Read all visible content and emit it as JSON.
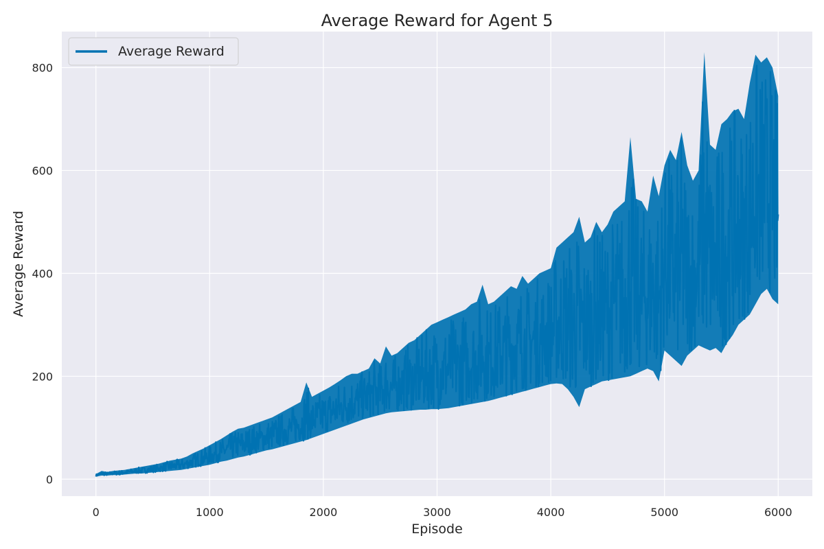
{
  "chart_data": {
    "type": "line",
    "title": "Average Reward for Agent 5",
    "xlabel": "Episode",
    "ylabel": "Average Reward",
    "xlim": [
      -300,
      6300
    ],
    "ylim": [
      -33,
      870
    ],
    "xticks": [
      0,
      1000,
      2000,
      3000,
      4000,
      5000,
      6000
    ],
    "yticks": [
      0,
      200,
      400,
      600,
      800
    ],
    "grid": true,
    "legend_position": "top-left",
    "series": [
      {
        "name": "Average Reward",
        "color": "#0072b2",
        "x": [
          0,
          50,
          100,
          150,
          200,
          250,
          300,
          350,
          400,
          450,
          500,
          550,
          600,
          650,
          700,
          750,
          800,
          850,
          900,
          950,
          1000,
          1050,
          1100,
          1150,
          1200,
          1250,
          1300,
          1350,
          1400,
          1450,
          1500,
          1550,
          1600,
          1650,
          1700,
          1750,
          1800,
          1850,
          1900,
          1950,
          2000,
          2050,
          2100,
          2150,
          2200,
          2250,
          2300,
          2350,
          2400,
          2450,
          2500,
          2550,
          2600,
          2650,
          2700,
          2750,
          2800,
          2850,
          2900,
          2950,
          3000,
          3050,
          3100,
          3150,
          3200,
          3250,
          3300,
          3350,
          3400,
          3450,
          3500,
          3550,
          3600,
          3650,
          3700,
          3750,
          3800,
          3850,
          3900,
          3950,
          4000,
          4050,
          4100,
          4150,
          4200,
          4250,
          4300,
          4350,
          4400,
          4450,
          4500,
          4550,
          4600,
          4650,
          4700,
          4750,
          4800,
          4850,
          4900,
          4950,
          5000,
          5050,
          5100,
          5150,
          5200,
          5250,
          5300,
          5350,
          5400,
          5450,
          5500,
          5550,
          5600,
          5650,
          5700,
          5750,
          5800,
          5850,
          5900,
          5950,
          6000
        ],
        "lower": [
          5,
          7,
          7,
          8,
          8,
          9,
          10,
          11,
          11,
          12,
          13,
          14,
          15,
          16,
          17,
          18,
          20,
          22,
          24,
          26,
          28,
          31,
          34,
          36,
          39,
          42,
          44,
          47,
          50,
          53,
          56,
          58,
          61,
          64,
          67,
          70,
          73,
          76,
          80,
          84,
          88,
          92,
          96,
          100,
          104,
          108,
          112,
          116,
          119,
          122,
          125,
          128,
          130,
          131,
          132,
          133,
          134,
          135,
          135,
          136,
          136,
          137,
          138,
          140,
          142,
          144,
          146,
          148,
          150,
          152,
          155,
          158,
          161,
          164,
          167,
          170,
          173,
          176,
          179,
          182,
          185,
          186,
          185,
          175,
          160,
          140,
          175,
          180,
          185,
          190,
          192,
          194,
          196,
          198,
          200,
          205,
          210,
          215,
          210,
          190,
          250,
          240,
          230,
          220,
          240,
          250,
          260,
          255,
          250,
          255,
          245,
          265,
          280,
          300,
          310,
          320,
          340,
          360,
          370,
          350,
          340
        ],
        "upper": [
          10,
          16,
          14,
          16,
          17,
          18,
          20,
          22,
          24,
          26,
          28,
          30,
          33,
          36,
          38,
          40,
          44,
          50,
          55,
          60,
          66,
          72,
          78,
          85,
          92,
          98,
          100,
          104,
          108,
          112,
          116,
          120,
          126,
          132,
          138,
          144,
          150,
          188,
          160,
          166,
          172,
          178,
          185,
          192,
          200,
          205,
          205,
          210,
          215,
          235,
          225,
          258,
          240,
          245,
          255,
          265,
          270,
          280,
          290,
          300,
          305,
          310,
          315,
          320,
          325,
          330,
          340,
          345,
          378,
          340,
          345,
          355,
          365,
          375,
          370,
          395,
          380,
          390,
          400,
          405,
          410,
          450,
          460,
          470,
          480,
          510,
          460,
          470,
          500,
          480,
          495,
          520,
          530,
          540,
          665,
          545,
          540,
          520,
          590,
          550,
          610,
          640,
          620,
          675,
          610,
          580,
          600,
          830,
          650,
          640,
          690,
          700,
          715,
          720,
          700,
          770,
          825,
          810,
          820,
          800,
          745
        ]
      }
    ]
  },
  "legend": {
    "label": "Average Reward"
  }
}
